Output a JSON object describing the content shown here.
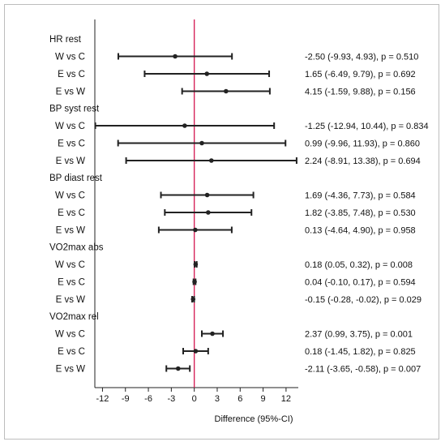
{
  "chart_data": {
    "type": "forest",
    "xlabel": "Difference (95%-CI)",
    "xlim": [
      -13,
      13.6
    ],
    "xticks": [
      -12,
      -9,
      -6,
      -3,
      0,
      3,
      6,
      9,
      12
    ],
    "reference_line": 0,
    "colors": {
      "reference": "#d6245a",
      "marks": "#222222",
      "frame": "#bdbdbd"
    },
    "groups": [
      {
        "name": "HR rest",
        "rows": [
          {
            "label": "W vs C",
            "est": -2.5,
            "lo": -9.93,
            "hi": 4.93,
            "text": "-2.50 (-9.93, 4.93), p = 0.510"
          },
          {
            "label": "E vs C",
            "est": 1.65,
            "lo": -6.49,
            "hi": 9.79,
            "text": "1.65 (-6.49, 9.79), p = 0.692"
          },
          {
            "label": "E vs W",
            "est": 4.15,
            "lo": -1.59,
            "hi": 9.88,
            "text": "4.15 (-1.59, 9.88), p = 0.156"
          }
        ]
      },
      {
        "name": "BP syst rest",
        "rows": [
          {
            "label": "W vs C",
            "est": -1.25,
            "lo": -12.94,
            "hi": 10.44,
            "text": "-1.25 (-12.94, 10.44), p = 0.834"
          },
          {
            "label": "E vs C",
            "est": 0.99,
            "lo": -9.96,
            "hi": 11.93,
            "text": "0.99 (-9.96, 11.93), p = 0.860"
          },
          {
            "label": "E vs W",
            "est": 2.24,
            "lo": -8.91,
            "hi": 13.38,
            "text": "2.24 (-8.91, 13.38), p = 0.694"
          }
        ]
      },
      {
        "name": "BP diast rest",
        "rows": [
          {
            "label": "W vs C",
            "est": 1.69,
            "lo": -4.36,
            "hi": 7.73,
            "text": "1.69 (-4.36, 7.73), p = 0.584"
          },
          {
            "label": "E vs C",
            "est": 1.82,
            "lo": -3.85,
            "hi": 7.48,
            "text": "1.82 (-3.85, 7.48), p = 0.530"
          },
          {
            "label": "E vs W",
            "est": 0.13,
            "lo": -4.64,
            "hi": 4.9,
            "text": "0.13 (-4.64, 4.90), p = 0.958"
          }
        ]
      },
      {
        "name": "VO2max abs",
        "rows": [
          {
            "label": "W vs C",
            "est": 0.18,
            "lo": 0.05,
            "hi": 0.32,
            "text": "0.18 (0.05, 0.32), p = 0.008"
          },
          {
            "label": "E vs C",
            "est": 0.04,
            "lo": -0.1,
            "hi": 0.17,
            "text": "0.04 (-0.10, 0.17), p = 0.594"
          },
          {
            "label": "E vs W",
            "est": -0.15,
            "lo": -0.28,
            "hi": -0.02,
            "text": "-0.15 (-0.28, -0.02), p = 0.029"
          }
        ]
      },
      {
        "name": "VO2max rel",
        "rows": [
          {
            "label": "W vs C",
            "est": 2.37,
            "lo": 0.99,
            "hi": 3.75,
            "text": "2.37 (0.99, 3.75), p = 0.001"
          },
          {
            "label": "E vs C",
            "est": 0.18,
            "lo": -1.45,
            "hi": 1.82,
            "text": "0.18 (-1.45, 1.82), p = 0.825"
          },
          {
            "label": "E vs W",
            "est": -2.11,
            "lo": -3.65,
            "hi": -0.58,
            "text": "-2.11 (-3.65, -0.58), p = 0.007"
          }
        ]
      }
    ]
  }
}
